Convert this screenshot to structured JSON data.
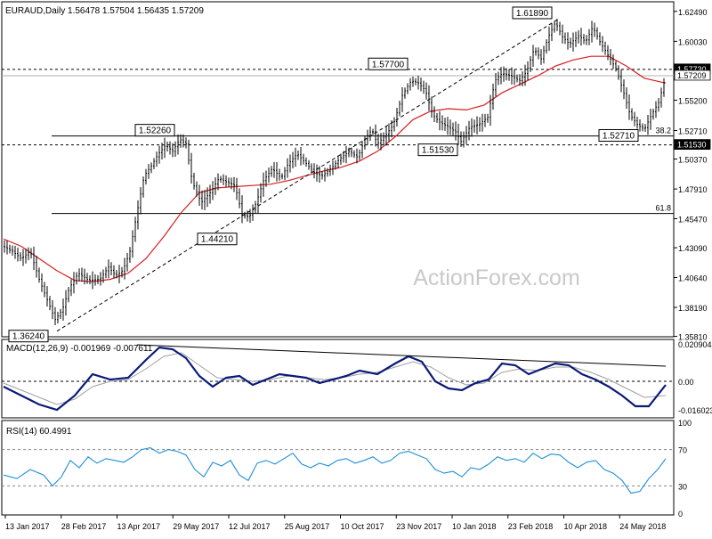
{
  "chart_data": {
    "type": "ohlc",
    "instrument": "EURAUD",
    "timeframe": "Daily",
    "ohlc": {
      "open": "1.56478",
      "high": "1.57504",
      "low": "1.56435",
      "close": "1.57209"
    },
    "title": "EURAUD,Daily  1.56478 1.57504 1.56435 1.57209",
    "watermark": "ActionForex.com",
    "price_axis": {
      "ylim": [
        1.3578,
        1.6313
      ],
      "ticks": [
        "1.62490",
        "1.60030",
        "1.57570",
        "1.55200",
        "1.52710",
        "1.50370",
        "1.47910",
        "1.45470",
        "1.43090",
        "1.40640",
        "1.38190",
        "1.35810"
      ]
    },
    "x_labels": [
      "13 Jan 2017",
      "28 Feb 2017",
      "13 Apr 2017",
      "29 May 2017",
      "12 Jul 2017",
      "25 Aug 2017",
      "10 Oct 2017",
      "23 Nov 2017",
      "10 Jan 2018",
      "23 Feb 2018",
      "10 Apr 2018",
      "24 May 2018"
    ],
    "price_path": [
      [
        0,
        1.432
      ],
      [
        10,
        1.428
      ],
      [
        20,
        1.422
      ],
      [
        30,
        1.428
      ],
      [
        40,
        1.405
      ],
      [
        48,
        1.39
      ],
      [
        58,
        1.372
      ],
      [
        66,
        1.38
      ],
      [
        74,
        1.398
      ],
      [
        84,
        1.41
      ],
      [
        96,
        1.404
      ],
      [
        108,
        1.405
      ],
      [
        118,
        1.415
      ],
      [
        126,
        1.408
      ],
      [
        134,
        1.412
      ],
      [
        142,
        1.428
      ],
      [
        150,
        1.46
      ],
      [
        158,
        1.49
      ],
      [
        166,
        1.498
      ],
      [
        174,
        1.508
      ],
      [
        182,
        1.515
      ],
      [
        190,
        1.51
      ],
      [
        198,
        1.52
      ],
      [
        205,
        1.516
      ],
      [
        212,
        1.485
      ],
      [
        222,
        1.468
      ],
      [
        232,
        1.476
      ],
      [
        242,
        1.488
      ],
      [
        250,
        1.485
      ],
      [
        260,
        1.482
      ],
      [
        268,
        1.458
      ],
      [
        276,
        1.456
      ],
      [
        284,
        1.468
      ],
      [
        292,
        1.486
      ],
      [
        302,
        1.496
      ],
      [
        312,
        1.488
      ],
      [
        320,
        1.5
      ],
      [
        330,
        1.508
      ],
      [
        340,
        1.5
      ],
      [
        350,
        1.492
      ],
      [
        358,
        1.49
      ],
      [
        368,
        1.496
      ],
      [
        378,
        1.504
      ],
      [
        388,
        1.51
      ],
      [
        398,
        1.505
      ],
      [
        406,
        1.52
      ],
      [
        414,
        1.528
      ],
      [
        420,
        1.516
      ],
      [
        430,
        1.524
      ],
      [
        438,
        1.532
      ],
      [
        448,
        1.556
      ],
      [
        458,
        1.568
      ],
      [
        466,
        1.566
      ],
      [
        474,
        1.56
      ],
      [
        482,
        1.54
      ],
      [
        490,
        1.534
      ],
      [
        500,
        1.53
      ],
      [
        508,
        1.526
      ],
      [
        514,
        1.518
      ],
      [
        524,
        1.53
      ],
      [
        534,
        1.532
      ],
      [
        544,
        1.538
      ],
      [
        552,
        1.568
      ],
      [
        560,
        1.574
      ],
      [
        570,
        1.572
      ],
      [
        580,
        1.568
      ],
      [
        588,
        1.576
      ],
      [
        596,
        1.594
      ],
      [
        604,
        1.586
      ],
      [
        612,
        1.604
      ],
      [
        620,
        1.616
      ],
      [
        628,
        1.604
      ],
      [
        636,
        1.598
      ],
      [
        646,
        1.605
      ],
      [
        654,
        1.6
      ],
      [
        662,
        1.612
      ],
      [
        670,
        1.6
      ],
      [
        680,
        1.588
      ],
      [
        688,
        1.578
      ],
      [
        696,
        1.56
      ],
      [
        704,
        1.54
      ],
      [
        712,
        1.532
      ],
      [
        720,
        1.528
      ],
      [
        728,
        1.54
      ],
      [
        736,
        1.55
      ],
      [
        744,
        1.572
      ]
    ],
    "sma_path": [
      [
        0,
        1.438
      ],
      [
        20,
        1.432
      ],
      [
        40,
        1.422
      ],
      [
        60,
        1.412
      ],
      [
        80,
        1.404
      ],
      [
        100,
        1.403
      ],
      [
        120,
        1.405
      ],
      [
        140,
        1.41
      ],
      [
        160,
        1.422
      ],
      [
        180,
        1.44
      ],
      [
        200,
        1.46
      ],
      [
        220,
        1.476
      ],
      [
        240,
        1.48
      ],
      [
        260,
        1.481
      ],
      [
        280,
        1.482
      ],
      [
        300,
        1.483
      ],
      [
        320,
        1.486
      ],
      [
        340,
        1.49
      ],
      [
        360,
        1.494
      ],
      [
        380,
        1.497
      ],
      [
        400,
        1.502
      ],
      [
        420,
        1.51
      ],
      [
        440,
        1.522
      ],
      [
        460,
        1.536
      ],
      [
        480,
        1.543
      ],
      [
        500,
        1.545
      ],
      [
        520,
        1.544
      ],
      [
        540,
        1.548
      ],
      [
        560,
        1.558
      ],
      [
        580,
        1.565
      ],
      [
        600,
        1.572
      ],
      [
        620,
        1.58
      ],
      [
        640,
        1.585
      ],
      [
        660,
        1.588
      ],
      [
        680,
        1.588
      ],
      [
        700,
        1.58
      ],
      [
        720,
        1.57
      ],
      [
        744,
        1.566
      ]
    ],
    "price_labels": [
      {
        "text": "1.36240",
        "price": 1.3624,
        "xi": 6,
        "rows": 1
      },
      {
        "text": "1.52260",
        "price": 1.5226,
        "xi": 148,
        "rows": 1
      },
      {
        "text": "1.44210",
        "price": 1.4421,
        "xi": 218,
        "rows": 1
      },
      {
        "text": "1.57700",
        "price": 1.577,
        "xi": 410,
        "rows": 1
      },
      {
        "text": "1.51530",
        "price": 1.5153,
        "xi": 466,
        "rows": 1
      },
      {
        "text": "1.61890",
        "price": 1.6189,
        "xi": 572,
        "rows": 1
      },
      {
        "text": "1.52710",
        "price": 1.5271,
        "xi": 669,
        "rows": 1
      }
    ],
    "horizontal_levels": [
      {
        "price": 1.5773,
        "style": "dashed",
        "label": "1.57730"
      },
      {
        "price": 1.5153,
        "style": "dashed",
        "label": "1.51530"
      },
      {
        "price": 1.5721,
        "style": "solid",
        "label": "1.57209"
      },
      {
        "price": 1.5226,
        "style": "solid",
        "label": "38.2"
      },
      {
        "price": 1.459,
        "style": "solid",
        "label": "61.8"
      }
    ],
    "trendline": {
      "from": [
        60,
        1.3624
      ],
      "to": [
        624,
        1.6189
      ]
    },
    "macd": {
      "label": "MACD(12,26,9) -0.001969 -0.007611",
      "ylim": [
        -0.0195,
        0.0225
      ],
      "ticks": [
        "0.020904",
        "0.00",
        "-0.016023"
      ],
      "line": [
        [
          0,
          -0.003
        ],
        [
          20,
          -0.008
        ],
        [
          40,
          -0.013
        ],
        [
          60,
          -0.016
        ],
        [
          80,
          -0.008
        ],
        [
          100,
          0.004
        ],
        [
          120,
          0.001
        ],
        [
          140,
          0.002
        ],
        [
          160,
          0.012
        ],
        [
          175,
          0.019
        ],
        [
          190,
          0.018
        ],
        [
          205,
          0.013
        ],
        [
          220,
          0.003
        ],
        [
          235,
          -0.003
        ],
        [
          250,
          0.002
        ],
        [
          265,
          0.003
        ],
        [
          280,
          -0.002
        ],
        [
          295,
          0.001
        ],
        [
          310,
          0.004
        ],
        [
          325,
          0.003
        ],
        [
          340,
          0.002
        ],
        [
          355,
          -0.001
        ],
        [
          370,
          0.001
        ],
        [
          385,
          0.003
        ],
        [
          400,
          0.006
        ],
        [
          420,
          0.004
        ],
        [
          440,
          0.01
        ],
        [
          455,
          0.014
        ],
        [
          470,
          0.011
        ],
        [
          485,
          0.0
        ],
        [
          500,
          -0.004
        ],
        [
          515,
          -0.005
        ],
        [
          530,
          -0.001
        ],
        [
          545,
          0.001
        ],
        [
          560,
          0.01
        ],
        [
          575,
          0.009
        ],
        [
          590,
          0.004
        ],
        [
          605,
          0.007
        ],
        [
          620,
          0.01
        ],
        [
          635,
          0.009
        ],
        [
          650,
          0.004
        ],
        [
          665,
          0.001
        ],
        [
          680,
          -0.003
        ],
        [
          695,
          -0.008
        ],
        [
          710,
          -0.014
        ],
        [
          725,
          -0.014
        ],
        [
          744,
          -0.002
        ]
      ],
      "signal": [
        [
          0,
          -0.001
        ],
        [
          20,
          -0.005
        ],
        [
          40,
          -0.009
        ],
        [
          60,
          -0.013
        ],
        [
          80,
          -0.01
        ],
        [
          100,
          -0.003
        ],
        [
          120,
          0.0
        ],
        [
          140,
          0.001
        ],
        [
          160,
          0.007
        ],
        [
          180,
          0.014
        ],
        [
          200,
          0.016
        ],
        [
          220,
          0.009
        ],
        [
          240,
          0.002
        ],
        [
          260,
          0.001
        ],
        [
          280,
          0.0
        ],
        [
          300,
          0.001
        ],
        [
          320,
          0.003
        ],
        [
          340,
          0.002
        ],
        [
          360,
          0.001
        ],
        [
          380,
          0.002
        ],
        [
          400,
          0.004
        ],
        [
          420,
          0.005
        ],
        [
          440,
          0.008
        ],
        [
          460,
          0.011
        ],
        [
          480,
          0.008
        ],
        [
          500,
          0.002
        ],
        [
          520,
          -0.002
        ],
        [
          540,
          -0.001
        ],
        [
          560,
          0.005
        ],
        [
          580,
          0.007
        ],
        [
          600,
          0.006
        ],
        [
          620,
          0.008
        ],
        [
          640,
          0.008
        ],
        [
          660,
          0.005
        ],
        [
          680,
          0.001
        ],
        [
          700,
          -0.004
        ],
        [
          720,
          -0.009
        ],
        [
          744,
          -0.008
        ]
      ],
      "trendline": {
        "from": [
          150,
          0.0205
        ],
        "to": [
          744,
          0.0085
        ]
      }
    },
    "rsi": {
      "label": "RSI(14) 60.4991",
      "ylim": [
        0,
        100
      ],
      "ticks": [
        "100",
        "70",
        "30",
        "0"
      ],
      "line": [
        [
          0,
          42
        ],
        [
          15,
          38
        ],
        [
          30,
          48
        ],
        [
          45,
          42
        ],
        [
          55,
          30
        ],
        [
          65,
          40
        ],
        [
          75,
          58
        ],
        [
          85,
          50
        ],
        [
          95,
          62
        ],
        [
          105,
          55
        ],
        [
          115,
          60
        ],
        [
          125,
          58
        ],
        [
          135,
          56
        ],
        [
          145,
          62
        ],
        [
          155,
          70
        ],
        [
          165,
          72
        ],
        [
          175,
          66
        ],
        [
          185,
          70
        ],
        [
          195,
          68
        ],
        [
          205,
          64
        ],
        [
          215,
          48
        ],
        [
          225,
          40
        ],
        [
          235,
          56
        ],
        [
          245,
          52
        ],
        [
          255,
          58
        ],
        [
          265,
          42
        ],
        [
          275,
          36
        ],
        [
          285,
          55
        ],
        [
          295,
          58
        ],
        [
          305,
          54
        ],
        [
          315,
          60
        ],
        [
          325,
          66
        ],
        [
          335,
          54
        ],
        [
          345,
          50
        ],
        [
          355,
          55
        ],
        [
          365,
          52
        ],
        [
          375,
          58
        ],
        [
          385,
          60
        ],
        [
          395,
          55
        ],
        [
          405,
          58
        ],
        [
          415,
          62
        ],
        [
          425,
          55
        ],
        [
          435,
          58
        ],
        [
          445,
          66
        ],
        [
          455,
          68
        ],
        [
          465,
          64
        ],
        [
          475,
          60
        ],
        [
          485,
          48
        ],
        [
          495,
          44
        ],
        [
          505,
          46
        ],
        [
          515,
          40
        ],
        [
          525,
          50
        ],
        [
          535,
          48
        ],
        [
          545,
          54
        ],
        [
          555,
          62
        ],
        [
          565,
          58
        ],
        [
          575,
          60
        ],
        [
          585,
          56
        ],
        [
          595,
          66
        ],
        [
          605,
          60
        ],
        [
          615,
          65
        ],
        [
          625,
          64
        ],
        [
          635,
          56
        ],
        [
          645,
          50
        ],
        [
          655,
          56
        ],
        [
          665,
          58
        ],
        [
          675,
          48
        ],
        [
          685,
          44
        ],
        [
          695,
          36
        ],
        [
          705,
          22
        ],
        [
          715,
          24
        ],
        [
          725,
          38
        ],
        [
          735,
          48
        ],
        [
          744,
          60
        ]
      ]
    }
  }
}
